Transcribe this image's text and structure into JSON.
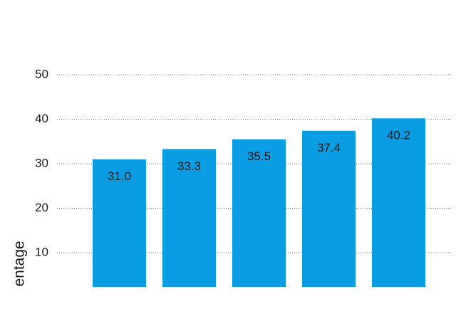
{
  "chart_data": {
    "type": "bar",
    "y_label": "Percentage",
    "categories": [
      null,
      null,
      null,
      null,
      null
    ],
    "values": [
      31.0,
      33.3,
      35.5,
      37.4,
      40.2
    ],
    "value_labels": [
      "31.0",
      "33.3",
      "35.5",
      "37.4",
      "40.2"
    ],
    "color": "#0a9de4",
    "ylim": [
      0,
      50
    ],
    "yticks": [
      10,
      20,
      30,
      40,
      50
    ],
    "grid": true
  }
}
